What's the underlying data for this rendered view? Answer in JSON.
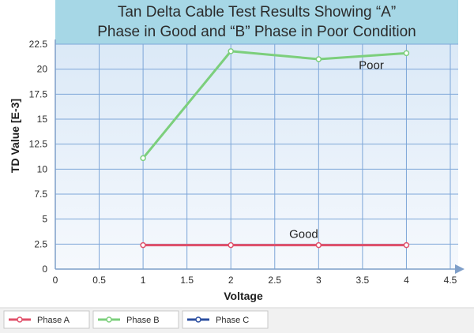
{
  "chart_data": {
    "type": "line",
    "title": [
      "Tan Delta Cable Test Results Showing “A”",
      "Phase in Good and “B” Phase in Poor Condition"
    ],
    "xlabel": "Voltage",
    "ylabel": "TD Value [E-3]",
    "xlim": [
      0,
      4.5
    ],
    "ylim": [
      0,
      22.5
    ],
    "x_ticks": [
      "0",
      "0.5",
      "1",
      "1.5",
      "2",
      "2.5",
      "3",
      "3.5",
      "4",
      "4.5"
    ],
    "y_ticks": [
      "0",
      "2.5",
      "5",
      "7.5",
      "10",
      "12.5",
      "15",
      "17.5",
      "20",
      "22.5"
    ],
    "grid": true,
    "legend_position": "bottom",
    "series": [
      {
        "name": "Phase A",
        "color": "#e0506a",
        "x": [
          1,
          2,
          3,
          4
        ],
        "y": [
          2.4,
          2.4,
          2.4,
          2.4
        ]
      },
      {
        "name": "Phase B",
        "color": "#7ccf7c",
        "x": [
          1,
          2,
          3,
          4
        ],
        "y": [
          11.1,
          21.8,
          21.0,
          21.6
        ]
      },
      {
        "name": "Phase C",
        "color": "#2c4fa0",
        "x": [],
        "y": []
      }
    ],
    "annotations": [
      {
        "text": "Poor",
        "x": 3.6,
        "y": 20.0
      },
      {
        "text": "Good",
        "x": 2.83,
        "y": 3.1
      }
    ]
  }
}
